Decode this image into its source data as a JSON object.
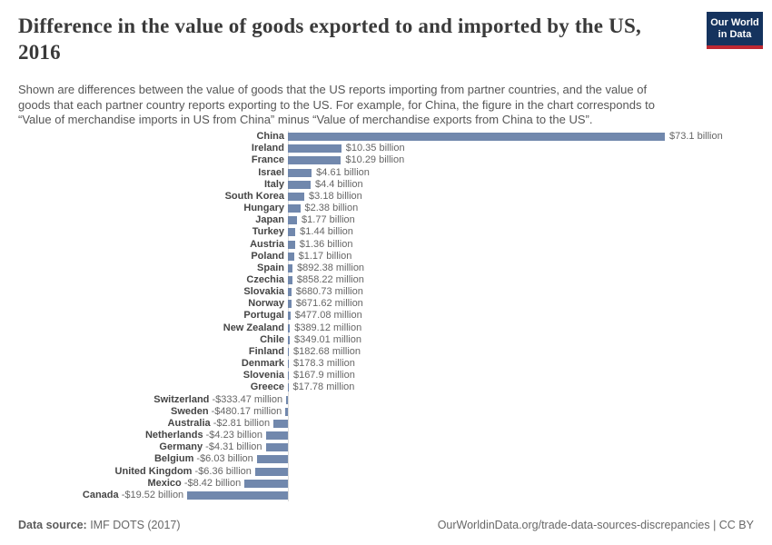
{
  "header": {
    "title_line1": "Difference in the value of goods exported to and imported by the US,",
    "title_line2": "2016",
    "subtitle_lines": [
      "Shown are differences between the value of goods that the US reports importing from partner countries, and the value of",
      "goods that each partner country reports exporting to the US. For example, for China, the figure in the chart corresponds to",
      "“Value of merchandise imports in US from China” minus “Value of merchandise exports from China to the US”."
    ],
    "logo_line1": "Our World",
    "logo_line2": "in Data",
    "logo_bg_color": "#15335e",
    "logo_stripe_color": "#be2832"
  },
  "chart_data": {
    "type": "bar",
    "orientation": "horizontal",
    "value_unit": "US dollars (billions)",
    "bar_color": "#7188ad",
    "zero_line": true,
    "legend_position": "none",
    "grid": false,
    "xlim_billion": [
      -19.52,
      73.1
    ],
    "categories": [
      "China",
      "Ireland",
      "France",
      "Israel",
      "Italy",
      "South Korea",
      "Hungary",
      "Japan",
      "Turkey",
      "Austria",
      "Poland",
      "Spain",
      "Czechia",
      "Slovakia",
      "Norway",
      "Portugal",
      "New Zealand",
      "Chile",
      "Finland",
      "Denmark",
      "Slovenia",
      "Greece",
      "Switzerland",
      "Sweden",
      "Australia",
      "Netherlands",
      "Germany",
      "Belgium",
      "United Kingdom",
      "Mexico",
      "Canada"
    ],
    "values_billion": [
      73.1,
      10.35,
      10.29,
      4.61,
      4.4,
      3.18,
      2.38,
      1.77,
      1.44,
      1.36,
      1.17,
      0.89238,
      0.85822,
      0.68073,
      0.67162,
      0.47708,
      0.38912,
      0.34901,
      0.18268,
      0.1783,
      0.1679,
      0.01778,
      -0.33347,
      -0.48017,
      -2.81,
      -4.23,
      -4.31,
      -6.03,
      -6.36,
      -8.42,
      -19.52
    ],
    "value_labels": [
      "$73.1 billion",
      "$10.35 billion",
      "$10.29 billion",
      "$4.61 billion",
      "$4.4 billion",
      "$3.18 billion",
      "$2.38 billion",
      "$1.77 billion",
      "$1.44 billion",
      "$1.36 billion",
      "$1.17 billion",
      "$892.38 million",
      "$858.22 million",
      "$680.73 million",
      "$671.62 million",
      "$477.08 million",
      "$389.12 million",
      "$349.01 million",
      "$182.68 million",
      "$178.3 million",
      "$167.9 million",
      "$17.78 million",
      "-$333.47 million",
      "-$480.17 million",
      "-$2.81 billion",
      "-$4.23 billion",
      "-$4.31 billion",
      "-$6.03 billion",
      "-$6.36 billion",
      "-$8.42 billion",
      "-$19.52 billion"
    ]
  },
  "footer": {
    "data_source_label": "Data source:",
    "data_source_value": " IMF DOTS (2017)",
    "credit": "OurWorldinData.org/trade-data-sources-discrepancies | CC BY"
  }
}
